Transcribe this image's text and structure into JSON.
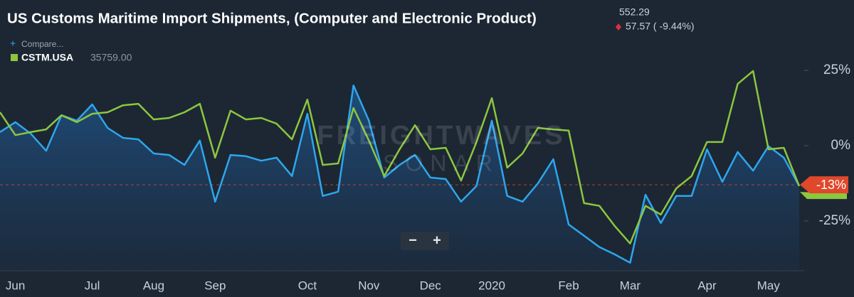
{
  "chart_data": {
    "type": "line",
    "title": "US Customs Maritime Import Shipments, (Computer and Electronic Product)",
    "last_price": "552.29",
    "change": "57.57 ( -9.44%)",
    "compare": "Compare...",
    "legend_value": "35759.00",
    "watermark": "FREIGHTWAVES",
    "watermark_sub": "SONAR",
    "zoom_controls": [
      "−",
      "+"
    ],
    "categories": [
      null,
      "Jun",
      null,
      null,
      null,
      null,
      "Jul",
      null,
      null,
      null,
      "Aug",
      null,
      null,
      null,
      "Sep",
      null,
      null,
      null,
      null,
      null,
      "Oct",
      null,
      null,
      null,
      "Nov",
      null,
      null,
      null,
      "Dec",
      null,
      null,
      null,
      "2020",
      null,
      null,
      null,
      null,
      "Feb",
      null,
      null,
      null,
      "Mar",
      null,
      null,
      null,
      null,
      "Apr",
      null,
      null,
      null,
      "May",
      null,
      null
    ],
    "series": [
      {
        "name": "CSTM.USA",
        "color": "#8dc63f",
        "values": [
          11.1,
          3.5,
          4.5,
          5.4,
          10.1,
          7.8,
          10.6,
          11.1,
          13.4,
          13.9,
          8.7,
          9.2,
          11.1,
          13.9,
          -4.0,
          11.6,
          8.7,
          9.2,
          7.3,
          2.1,
          15.3,
          -6.4,
          -5.9,
          12.5,
          1.7,
          -10.1,
          -1.2,
          6.8,
          -1.2,
          -0.7,
          -11.6,
          1.2,
          15.8,
          -7.3,
          -2.6,
          5.9,
          5.4,
          5.0,
          -19.1,
          -20.0,
          -26.7,
          -32.5,
          -20.0,
          -22.9,
          -14.2,
          -10.1,
          1.2,
          1.2,
          20.5,
          24.8,
          -1.2,
          -0.7,
          -13.4
        ]
      },
      {
        "color": "#2ea6ee",
        "values": [
          4.5,
          7.8,
          4.0,
          -1.7,
          10.1,
          8.3,
          13.7,
          5.9,
          2.6,
          2.1,
          -2.6,
          -3.1,
          -6.4,
          1.7,
          -18.6,
          -3.1,
          -3.5,
          -5.0,
          -4.0,
          -10.1,
          10.6,
          -16.7,
          -15.3,
          20.0,
          8.3,
          -10.6,
          -6.4,
          -3.1,
          -10.6,
          -11.1,
          -18.6,
          -13.4,
          8.3,
          -16.7,
          -18.6,
          -12.5,
          -4.5,
          -26.2,
          -29.9,
          -33.7,
          -36.1,
          -38.9,
          -16.3,
          -25.7,
          -16.7,
          -16.7,
          -1.2,
          -12.0,
          -2.1,
          -8.3,
          -0.2,
          -4.0,
          -13.4
        ]
      }
    ],
    "reference_line": {
      "value": -13,
      "label": "-13%",
      "color": "#e0472b"
    },
    "ylim": [
      -41.3,
      35.4
    ],
    "yticks": [
      {
        "value": 25,
        "label": "25%"
      },
      {
        "value": 0,
        "label": "0%"
      },
      {
        "value": -25,
        "label": "-25%"
      }
    ],
    "grid": false
  }
}
